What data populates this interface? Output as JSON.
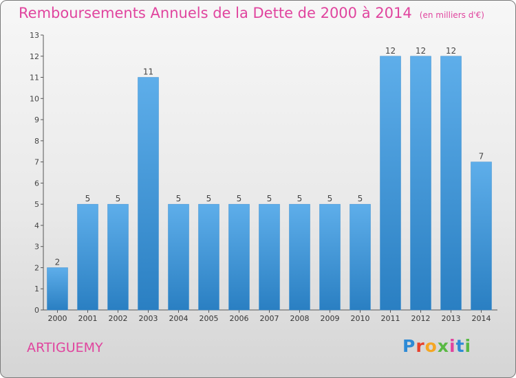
{
  "header": {
    "title": "Remboursements Annuels de la Dette de 2000 à 2014",
    "unit": "(en milliers d'€)"
  },
  "footer": {
    "commune": "ARTIGUEMY",
    "logo_text": "Proxiti"
  },
  "colors": {
    "accent": "#e0449e",
    "bar_light": "#5eaeea",
    "bar_dark": "#2a7fc2"
  },
  "chart_data": {
    "type": "bar",
    "title": "Remboursements Annuels de la Dette de 2000 à 2014",
    "subtitle": "(en milliers d'€)",
    "categories": [
      "2000",
      "2001",
      "2002",
      "2003",
      "2004",
      "2005",
      "2006",
      "2007",
      "2008",
      "2009",
      "2010",
      "2011",
      "2012",
      "2013",
      "2014"
    ],
    "values": [
      2,
      5,
      5,
      11,
      5,
      5,
      5,
      5,
      5,
      5,
      5,
      12,
      12,
      12,
      7
    ],
    "data_labels": [
      "2",
      "5",
      "5",
      "11",
      "5",
      "5",
      "5",
      "5",
      "5",
      "5",
      "5",
      "12",
      "12",
      "12",
      "7"
    ],
    "yticks": [
      0,
      1,
      2,
      3,
      4,
      5,
      6,
      7,
      8,
      9,
      10,
      11,
      12,
      13
    ],
    "ylim": [
      0,
      13
    ],
    "grid": false,
    "legend": "none"
  }
}
